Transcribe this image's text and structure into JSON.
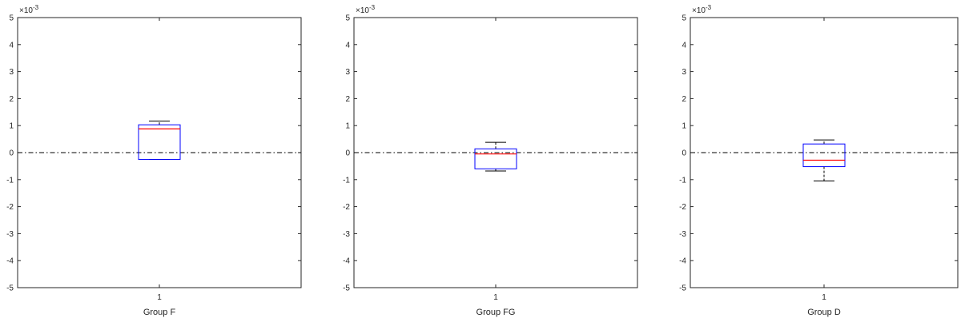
{
  "chart_data": [
    {
      "type": "box",
      "xlabel": "Group F",
      "categories": [
        "1"
      ],
      "ylim": [
        -5,
        5
      ],
      "yticks": [
        5,
        4,
        3,
        2,
        1,
        0,
        -1,
        -2,
        -3,
        -4,
        -5
      ],
      "yticks_text": [
        "5",
        "4",
        "3",
        "2",
        "1",
        "0",
        "-1",
        "-2",
        "-3",
        "-4",
        "-5"
      ],
      "exponent_base": "×10",
      "exponent_power": "-3",
      "reference_line": 0,
      "box": {
        "whisker_low": -0.25,
        "q1": -0.25,
        "median": 0.88,
        "q3": 1.03,
        "whisker_high": 1.17
      }
    },
    {
      "type": "box",
      "xlabel": "Group FG",
      "categories": [
        "1"
      ],
      "ylim": [
        -5,
        5
      ],
      "yticks": [
        5,
        4,
        3,
        2,
        1,
        0,
        -1,
        -2,
        -3,
        -4,
        -5
      ],
      "yticks_text": [
        "5",
        "4",
        "3",
        "2",
        "1",
        "0",
        "-1",
        "-2",
        "-3",
        "-4",
        "-5"
      ],
      "exponent_base": "×10",
      "exponent_power": "-3",
      "reference_line": 0,
      "box": {
        "whisker_low": -0.68,
        "q1": -0.6,
        "median": -0.05,
        "q3": 0.14,
        "whisker_high": 0.38
      }
    },
    {
      "type": "box",
      "xlabel": "Group D",
      "categories": [
        "1"
      ],
      "ylim": [
        -5,
        5
      ],
      "yticks": [
        5,
        4,
        3,
        2,
        1,
        0,
        -1,
        -2,
        -3,
        -4,
        -5
      ],
      "yticks_text": [
        "5",
        "4",
        "3",
        "2",
        "1",
        "0",
        "-1",
        "-2",
        "-3",
        "-4",
        "-5"
      ],
      "exponent_base": "×10",
      "exponent_power": "-3",
      "reference_line": 0,
      "box": {
        "whisker_low": -1.05,
        "q1": -0.52,
        "median": -0.28,
        "q3": 0.32,
        "whisker_high": 0.47
      }
    }
  ],
  "colors": {
    "axis": "#262626",
    "box": "#0000ff",
    "median": "#ff0000",
    "whisker": "#000000",
    "reference_line": "#000000"
  }
}
